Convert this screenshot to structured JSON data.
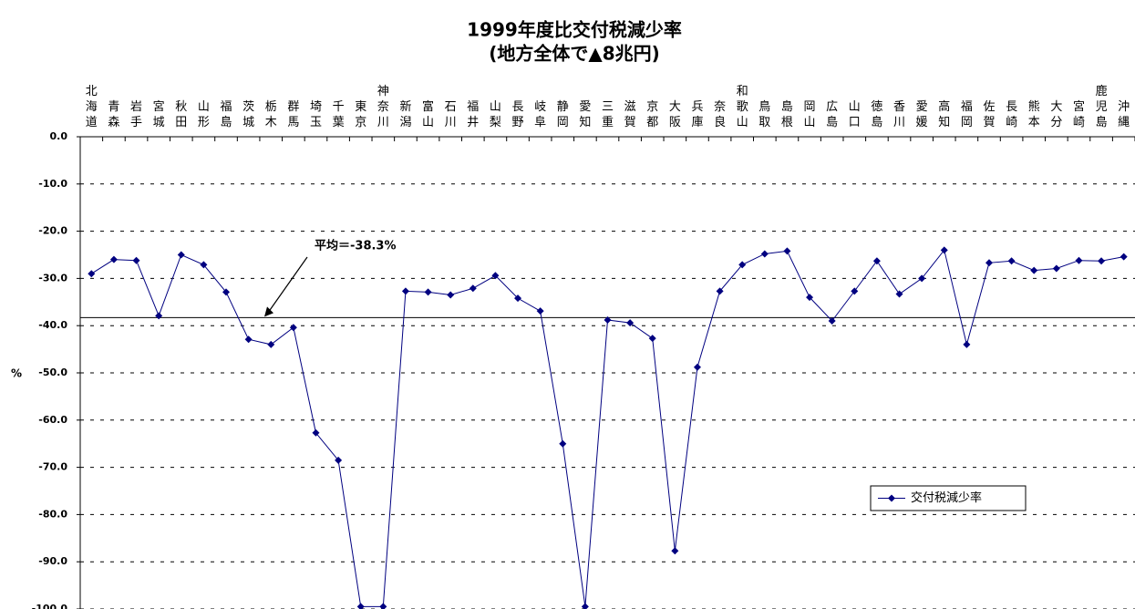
{
  "chart_data": {
    "type": "line",
    "title": "1999年度比交付税減少率",
    "subtitle": "(地方全体で▲8兆円)",
    "y_label": "%",
    "categories": [
      "北海道",
      "青森",
      "岩手",
      "宮城",
      "秋田",
      "山形",
      "福島",
      "茨城",
      "栃木",
      "群馬",
      "埼玉",
      "千葉",
      "東京",
      "神奈川",
      "新潟",
      "富山",
      "石川",
      "福井",
      "山梨",
      "長野",
      "岐阜",
      "静岡",
      "愛知",
      "三重",
      "滋賀",
      "京都",
      "大阪",
      "兵庫",
      "奈良",
      "和歌山",
      "鳥取",
      "島根",
      "岡山",
      "広島",
      "山口",
      "徳島",
      "香川",
      "愛媛",
      "高知",
      "福岡",
      "佐賀",
      "長崎",
      "熊本",
      "大分",
      "宮崎",
      "鹿児島",
      "沖縄"
    ],
    "series": [
      {
        "name": "交付税減少率",
        "color": "#000080",
        "values": [
          -29.0,
          -26.0,
          -26.2,
          -37.9,
          -25.0,
          -27.1,
          -32.9,
          -42.9,
          -44.0,
          -40.4,
          -62.7,
          -68.5,
          -99.5,
          -99.5,
          -32.7,
          -32.9,
          -33.5,
          -32.1,
          -29.4,
          -34.2,
          -36.9,
          -65.0,
          -99.5,
          -38.8,
          -39.4,
          -42.7,
          -87.7,
          -48.8,
          -32.7,
          -27.1,
          -24.8,
          -24.2,
          -34.0,
          -39.0,
          -32.7,
          -26.3,
          -33.3,
          -30.0,
          -24.0,
          -44.0,
          -26.7,
          -26.3,
          -28.3,
          -27.9,
          -26.2,
          -26.3,
          -25.4
        ]
      }
    ],
    "average": -38.3,
    "annotation": "平均＝-38.3%",
    "ylim": [
      0,
      -100
    ],
    "yticks": [
      {
        "value": 0,
        "label": "0.0"
      },
      {
        "value": -10,
        "label": "-10.0"
      },
      {
        "value": -20,
        "label": "-20.0"
      },
      {
        "value": -30,
        "label": "-30.0"
      },
      {
        "value": -40,
        "label": "-40.0"
      },
      {
        "value": -50,
        "label": "-50.0"
      },
      {
        "value": -60,
        "label": "-60.0"
      },
      {
        "value": -70,
        "label": "-70.0"
      },
      {
        "value": -80,
        "label": "-80.0"
      },
      {
        "value": -90,
        "label": "-90.0"
      },
      {
        "value": -100,
        "label": "-100.0"
      }
    ],
    "grid": true,
    "legend": "lower right"
  }
}
